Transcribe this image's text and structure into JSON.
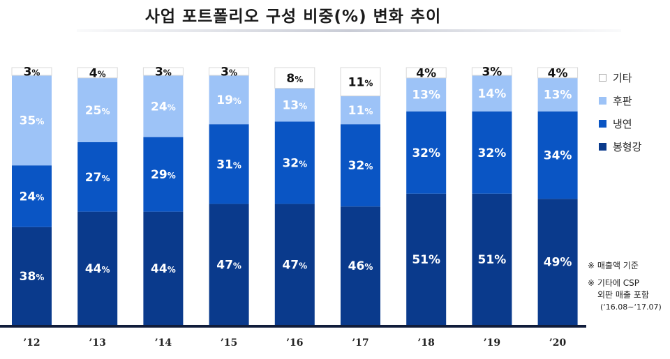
{
  "title": "사업 포트폴리오 구성 비중(%) 변화 추이",
  "legend": [
    {
      "label": "기타",
      "color": "#ffffff",
      "border": "#aaaaaa"
    },
    {
      "label": "후판",
      "color": "#9dc3f7",
      "border": "#9dc3f7"
    },
    {
      "label": "냉연",
      "color": "#0a55c4",
      "border": "#0a55c4"
    },
    {
      "label": "봉형강",
      "color": "#0a3a8c",
      "border": "#0a3a8c"
    }
  ],
  "notes": {
    "note1": "※ 매출액 기준",
    "note2_line1": "※ 기타에 CSP",
    "note2_line2": "외판 매출 포함",
    "note2_line3": "(‘16.08~‘17.07)"
  },
  "colors": {
    "봉형강": "#0a3a8c",
    "냉연": "#0a55c4",
    "후판": "#9dc3f7",
    "기타": "#ffffff",
    "baseline": "#101c3a"
  },
  "chart_data": {
    "type": "bar",
    "stacked": true,
    "categories": [
      "’12",
      "’13",
      "’14",
      "’15",
      "’16",
      "’17",
      "’18",
      "’19",
      "’20"
    ],
    "series": [
      {
        "name": "봉형강",
        "values": [
          38,
          44,
          44,
          47,
          47,
          46,
          51,
          51,
          49
        ]
      },
      {
        "name": "냉연",
        "values": [
          24,
          27,
          29,
          31,
          32,
          32,
          32,
          32,
          34
        ]
      },
      {
        "name": "후판",
        "values": [
          35,
          25,
          24,
          19,
          13,
          11,
          13,
          14,
          13
        ]
      },
      {
        "name": "기타",
        "values": [
          3,
          4,
          3,
          3,
          8,
          11,
          4,
          3,
          4
        ]
      }
    ],
    "value_suffix": "%",
    "ylim": [
      0,
      100
    ],
    "legend_position": "right"
  }
}
